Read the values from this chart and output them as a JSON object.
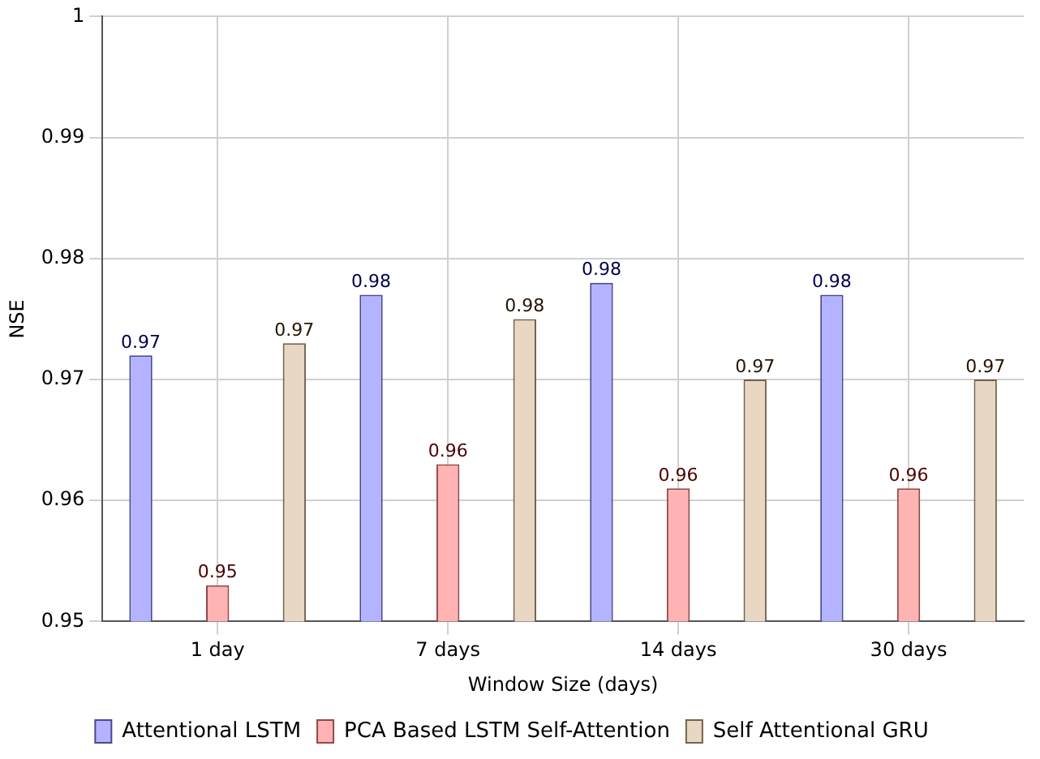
{
  "chart_data": {
    "type": "bar",
    "xlabel": "Window Size (days)",
    "ylabel": "NSE",
    "categories": [
      "1 day",
      "7 days",
      "14 days",
      "30 days"
    ],
    "series": [
      {
        "name": "Attentional LSTM",
        "color": "#b3b3ff",
        "values": [
          0.972,
          0.977,
          0.978,
          0.977
        ],
        "value_labels": [
          "0.97",
          "0.98",
          "0.98",
          "0.98"
        ]
      },
      {
        "name": "PCA Based LSTM Self-Attention",
        "color": "#ffb3b3",
        "values": [
          0.953,
          0.963,
          0.961,
          0.961
        ],
        "value_labels": [
          "0.95",
          "0.96",
          "0.96",
          "0.96"
        ]
      },
      {
        "name": "Self Attentional GRU",
        "color": "#e8d8c3",
        "values": [
          0.973,
          0.975,
          0.97,
          0.97
        ],
        "value_labels": [
          "0.97",
          "0.98",
          "0.97",
          "0.97"
        ]
      }
    ],
    "ylim": [
      0.95,
      1
    ],
    "yticks": [
      0.95,
      0.96,
      0.97,
      0.98,
      0.99,
      1
    ],
    "grid": true,
    "legend": "bottom"
  }
}
